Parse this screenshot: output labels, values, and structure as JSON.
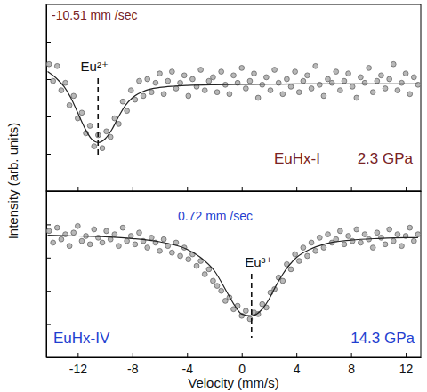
{
  "chart_data": [
    {
      "type": "scatter",
      "y_label": "Intensity (arb. units)",
      "xlim": [
        -14.3,
        13.1
      ],
      "xticks": [
        -12,
        -8,
        -4,
        0,
        4,
        8,
        12
      ],
      "ylim": [
        0,
        10
      ],
      "yticks": [
        2,
        4,
        6,
        8
      ],
      "tick_labels": false,
      "series": [
        {
          "type": "scatter",
          "marker": "circle",
          "color": "#b8b8b8",
          "x": [
            -14.1,
            -13.8,
            -13.5,
            -13.2,
            -12.9,
            -12.6,
            -12.3,
            -12.0,
            -11.7,
            -11.4,
            -11.1,
            -10.8,
            -10.5,
            -10.2,
            -9.9,
            -9.6,
            -9.3,
            -9.0,
            -8.7,
            -8.4,
            -8.1,
            -7.8,
            -7.5,
            -7.2,
            -6.9,
            -6.6,
            -6.3,
            -6.0,
            -5.7,
            -5.4,
            -5.1,
            -4.8,
            -4.5,
            -4.2,
            -3.9,
            -3.6,
            -3.3,
            -3.0,
            -2.7,
            -2.4,
            -2.1,
            -1.8,
            -1.5,
            -1.2,
            -0.9,
            -0.6,
            -0.3,
            0.0,
            0.3,
            0.6,
            0.9,
            1.2,
            1.5,
            1.8,
            2.1,
            2.4,
            2.7,
            3.0,
            3.3,
            3.6,
            3.9,
            4.2,
            4.5,
            4.8,
            5.1,
            5.4,
            5.7,
            6.0,
            6.3,
            6.6,
            6.9,
            7.2,
            7.5,
            7.8,
            8.1,
            8.4,
            8.7,
            9.0,
            9.3,
            9.6,
            9.9,
            10.2,
            10.5,
            10.8,
            11.1,
            11.4,
            11.7,
            12.0,
            12.3,
            12.6,
            12.9
          ],
          "values": [
            6.8,
            5.9,
            6.7,
            5.4,
            5.8,
            4.6,
            5.1,
            3.9,
            4.2,
            3.1,
            3.5,
            2.4,
            3.0,
            2.3,
            3.2,
            2.9,
            3.9,
            3.6,
            4.8,
            4.3,
            5.4,
            4.9,
            5.9,
            5.1,
            6.0,
            5.3,
            5.8,
            6.3,
            5.2,
            5.9,
            6.4,
            5.5,
            5.8,
            6.2,
            5.1,
            6.0,
            5.6,
            6.5,
            5.4,
            5.9,
            6.1,
            5.3,
            6.4,
            5.7,
            5.2,
            6.2,
            5.8,
            6.6,
            5.5,
            5.9,
            6.3,
            5.0,
            5.7,
            6.1,
            5.4,
            6.5,
            5.8,
            5.2,
            6.0,
            5.6,
            6.4,
            5.3,
            5.9,
            6.2,
            5.5,
            6.7,
            5.7,
            5.1,
            6.0,
            5.8,
            6.4,
            5.4,
            5.9,
            6.3,
            5.6,
            5.0,
            6.1,
            5.8,
            6.6,
            5.3,
            5.9,
            6.2,
            5.5,
            6.0,
            6.8,
            5.4,
            5.8,
            6.3,
            5.2,
            6.1,
            5.7
          ]
        },
        {
          "type": "line",
          "line_style": "solid",
          "color": "#222222",
          "x": [
            -14.2,
            -13.5,
            -13,
            -12.5,
            -12,
            -11.5,
            -11,
            -10.5,
            -10,
            -9.5,
            -9,
            -8.5,
            -8,
            -7,
            -6,
            -5,
            -4,
            -2,
            0,
            2,
            4,
            6,
            8,
            10,
            12,
            12.9
          ],
          "values": [
            6.4,
            6.0,
            5.6,
            5.0,
            4.2,
            3.4,
            2.8,
            2.6,
            2.8,
            3.3,
            4.0,
            4.6,
            5.0,
            5.4,
            5.55,
            5.62,
            5.66,
            5.7,
            5.72,
            5.73,
            5.74,
            5.75,
            5.75,
            5.75,
            5.75,
            5.75
          ]
        }
      ],
      "annotations": [
        {
          "text": "-10.51 mm /sec",
          "color": "#7a2323"
        },
        {
          "text": "Eu²⁺",
          "x": -10.51,
          "color": "#111111"
        },
        {
          "text": "EuHx-I",
          "color": "#7a2323"
        },
        {
          "text": "2.3 GPa",
          "color": "#7a2323"
        }
      ]
    },
    {
      "type": "scatter",
      "x_label": "Velocity (mm/s)",
      "xlim": [
        -14.3,
        13.1
      ],
      "xticks": [
        -12,
        -8,
        -4,
        0,
        4,
        8,
        12
      ],
      "ylim": [
        0,
        10
      ],
      "yticks": [
        2,
        4,
        6,
        8
      ],
      "tick_labels": "x",
      "series": [
        {
          "type": "scatter",
          "marker": "circle",
          "color": "#b8b8b8",
          "x": [
            -14.1,
            -13.8,
            -13.5,
            -13.2,
            -12.9,
            -12.6,
            -12.3,
            -12.0,
            -11.7,
            -11.4,
            -11.1,
            -10.8,
            -10.5,
            -10.2,
            -9.9,
            -9.6,
            -9.3,
            -9.0,
            -8.7,
            -8.4,
            -8.1,
            -7.8,
            -7.5,
            -7.2,
            -6.9,
            -6.6,
            -6.3,
            -6.0,
            -5.7,
            -5.4,
            -5.1,
            -4.8,
            -4.5,
            -4.2,
            -3.9,
            -3.6,
            -3.3,
            -3.0,
            -2.7,
            -2.4,
            -2.1,
            -1.8,
            -1.5,
            -1.2,
            -0.9,
            -0.6,
            -0.3,
            0.0,
            0.3,
            0.6,
            0.9,
            1.2,
            1.5,
            1.8,
            2.1,
            2.4,
            2.7,
            3.0,
            3.3,
            3.6,
            3.9,
            4.2,
            4.5,
            4.8,
            5.1,
            5.4,
            5.7,
            6.0,
            6.3,
            6.6,
            6.9,
            7.2,
            7.5,
            7.8,
            8.1,
            8.4,
            8.7,
            9.0,
            9.3,
            9.6,
            9.9,
            10.2,
            10.5,
            10.8,
            11.1,
            11.4,
            11.7,
            12.0,
            12.3,
            12.6,
            12.9
          ],
          "values": [
            7.6,
            6.9,
            7.8,
            7.1,
            7.4,
            6.7,
            7.5,
            7.9,
            7.0,
            7.3,
            6.8,
            7.7,
            7.2,
            6.9,
            7.6,
            7.1,
            7.4,
            6.7,
            7.8,
            7.0,
            7.3,
            6.8,
            7.5,
            7.0,
            6.6,
            7.2,
            6.9,
            6.4,
            7.1,
            6.7,
            6.3,
            6.9,
            6.1,
            6.6,
            5.9,
            6.2,
            5.5,
            5.8,
            5.0,
            5.3,
            4.6,
            4.3,
            4.0,
            3.4,
            3.6,
            2.9,
            3.1,
            2.5,
            2.8,
            2.3,
            2.7,
            2.6,
            3.2,
            3.0,
            3.9,
            4.1,
            4.8,
            4.6,
            5.6,
            5.3,
            6.2,
            5.8,
            6.6,
            6.1,
            6.9,
            6.4,
            7.2,
            6.6,
            7.4,
            6.9,
            7.1,
            7.6,
            6.8,
            7.3,
            7.0,
            7.7,
            6.9,
            7.4,
            7.1,
            6.6,
            7.5,
            7.2,
            6.8,
            7.7,
            7.0,
            7.4,
            6.7,
            7.3,
            7.8,
            7.0,
            7.4
          ]
        },
        {
          "type": "line",
          "line_style": "solid",
          "color": "#222222",
          "x": [
            -14.2,
            -12,
            -10,
            -8,
            -6,
            -4,
            -3,
            -2,
            -1,
            -0.5,
            0,
            0.72,
            1.5,
            2,
            2.5,
            3,
            4,
            5,
            6,
            8,
            10,
            12,
            12.9
          ],
          "values": [
            7.35,
            7.3,
            7.25,
            7.15,
            6.95,
            6.5,
            6.0,
            5.2,
            3.8,
            3.1,
            2.6,
            2.5,
            2.9,
            3.5,
            4.3,
            5.0,
            6.0,
            6.5,
            6.8,
            7.05,
            7.15,
            7.2,
            7.2
          ]
        }
      ],
      "annotations": [
        {
          "text": "0.72 mm /sec",
          "color": "#1f3fd0"
        },
        {
          "text": "Eu³⁺",
          "x": 0.72,
          "color": "#111111"
        },
        {
          "text": "EuHx-IV",
          "color": "#1f3fd0"
        },
        {
          "text": "14.3 GPa",
          "color": "#1f3fd0"
        }
      ]
    }
  ]
}
